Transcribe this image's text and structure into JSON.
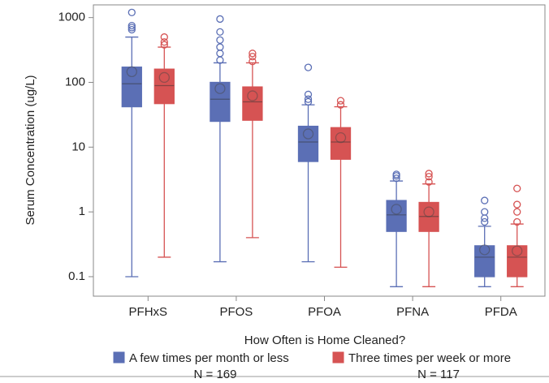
{
  "chart_data": {
    "type": "box",
    "y_label": "Serum Concentration (ug/L)",
    "legend_title": "How Often is Home Cleaned?",
    "legend_position": "bottom",
    "y_scale": "log",
    "categories": [
      "PFHxS",
      "PFOS",
      "PFOA",
      "PFNA",
      "PFDA"
    ],
    "ylim": [
      0.05,
      1400
    ],
    "yticks": [
      0.1,
      1,
      10,
      100,
      1000
    ],
    "series": [
      {
        "name": "A few times per month or less",
        "n_label": "N = 169",
        "color": "#5b6fb5",
        "whisker_low": [
          0.1,
          0.17,
          0.17,
          0.07,
          0.07
        ],
        "q1": [
          42,
          25,
          6,
          0.5,
          0.1
        ],
        "median": [
          95,
          55,
          12,
          0.9,
          0.2
        ],
        "q3": [
          172,
          100,
          21,
          1.5,
          0.3
        ],
        "whisker_high": [
          500,
          200,
          45,
          3.0,
          0.6
        ],
        "mean": [
          146,
          80,
          16,
          1.1,
          0.26
        ],
        "outliers": [
          [
            650,
            700,
            750,
            1200
          ],
          [
            220,
            280,
            350,
            450,
            600,
            950
          ],
          [
            50,
            55,
            65,
            170
          ],
          [
            3.3,
            3.6,
            3.8
          ],
          [
            0.7,
            0.8,
            1.0,
            1.5
          ]
        ]
      },
      {
        "name": "Three times per week or more",
        "n_label": "N = 117",
        "color": "#d65353",
        "whisker_low": [
          0.2,
          0.4,
          0.14,
          0.07,
          0.07
        ],
        "q1": [
          47,
          26,
          6.5,
          0.5,
          0.1
        ],
        "median": [
          89,
          50,
          12,
          0.85,
          0.2
        ],
        "q3": [
          160,
          85,
          20,
          1.4,
          0.3
        ],
        "whisker_high": [
          350,
          200,
          42,
          2.7,
          0.65
        ],
        "mean": [
          119,
          62,
          14,
          1.0,
          0.25
        ],
        "outliers": [
          [
            380,
            420,
            500
          ],
          [
            210,
            250,
            280
          ],
          [
            45,
            52
          ],
          [
            2.9,
            3.5,
            3.9
          ],
          [
            0.7,
            1.0,
            1.3,
            2.3
          ]
        ]
      }
    ]
  }
}
